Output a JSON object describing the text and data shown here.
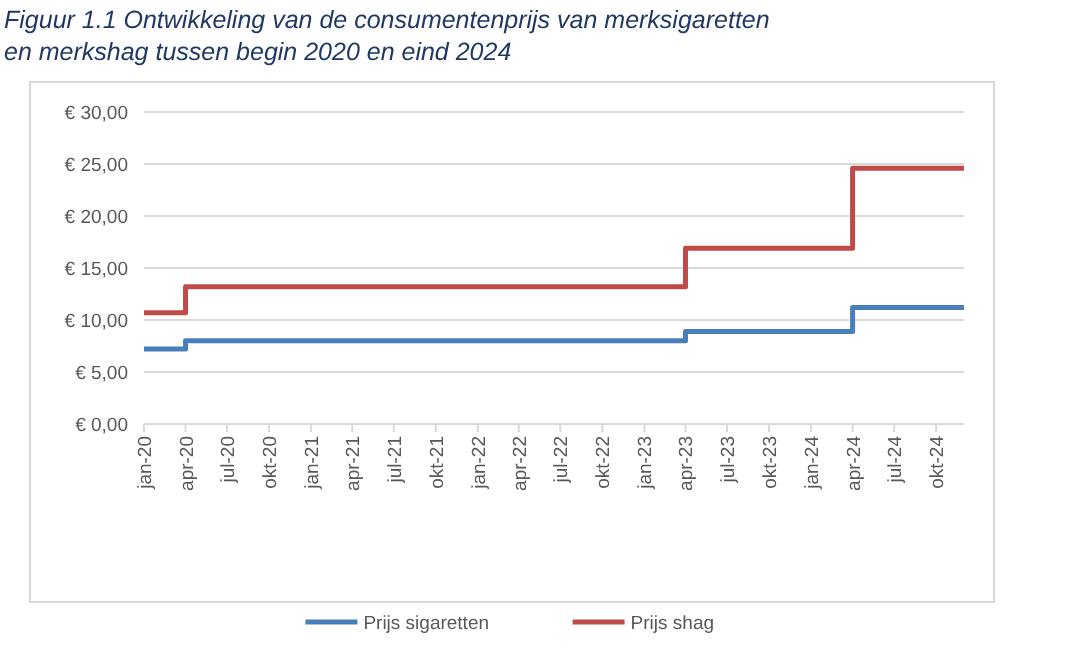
{
  "chart_data": {
    "type": "step",
    "title": "Figuur 1.1 Ontwikkeling van de consumentenprijs van merksigaretten en merkshag tussen begin 2020 en eind 2024",
    "x": [
      "2020-01",
      "2020-04",
      "2023-04",
      "2024-04",
      "2024-12"
    ],
    "series": [
      {
        "name": "Prijs sigaretten",
        "color": "#4a7ebb",
        "values": [
          7.2,
          8.0,
          8.9,
          11.2,
          11.2
        ]
      },
      {
        "name": "Prijs shag",
        "color": "#be4b48",
        "values": [
          10.7,
          13.2,
          16.9,
          24.6,
          24.6
        ]
      }
    ],
    "xlim": [
      "2020-01",
      "2024-12"
    ],
    "xticks": [
      {
        "value": "2020-01",
        "label": "jan-20"
      },
      {
        "value": "2020-04",
        "label": "apr-20"
      },
      {
        "value": "2020-07",
        "label": "jul-20"
      },
      {
        "value": "2020-10",
        "label": "okt-20"
      },
      {
        "value": "2021-01",
        "label": "jan-21"
      },
      {
        "value": "2021-04",
        "label": "apr-21"
      },
      {
        "value": "2021-07",
        "label": "jul-21"
      },
      {
        "value": "2021-10",
        "label": "okt-21"
      },
      {
        "value": "2022-01",
        "label": "jan-22"
      },
      {
        "value": "2022-04",
        "label": "apr-22"
      },
      {
        "value": "2022-07",
        "label": "jul-22"
      },
      {
        "value": "2022-10",
        "label": "okt-22"
      },
      {
        "value": "2023-01",
        "label": "jan-23"
      },
      {
        "value": "2023-04",
        "label": "apr-23"
      },
      {
        "value": "2023-07",
        "label": "jul-23"
      },
      {
        "value": "2023-10",
        "label": "okt-23"
      },
      {
        "value": "2024-01",
        "label": "jan-24"
      },
      {
        "value": "2024-04",
        "label": "apr-24"
      },
      {
        "value": "2024-07",
        "label": "jul-24"
      },
      {
        "value": "2024-10",
        "label": "okt-24"
      }
    ],
    "ylim": [
      0,
      30
    ],
    "yticks": [
      {
        "value": 0,
        "label": "€ 0,00"
      },
      {
        "value": 5,
        "label": "€ 5,00"
      },
      {
        "value": 10,
        "label": "€ 10,00"
      },
      {
        "value": 15,
        "label": "€ 15,00"
      },
      {
        "value": 20,
        "label": "€ 20,00"
      },
      {
        "value": 25,
        "label": "€ 25,00"
      },
      {
        "value": 30,
        "label": "€ 30,00"
      }
    ],
    "grid": "y",
    "legend": "bottom",
    "line_style": "solid",
    "marker": "none"
  }
}
